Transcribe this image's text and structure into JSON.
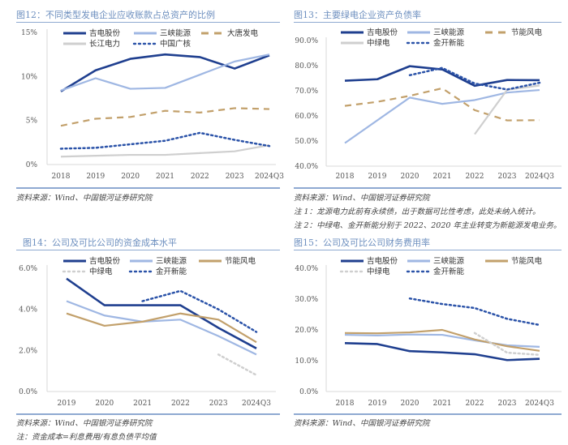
{
  "charts": [
    {
      "title": "图12：不同类型发电企业应收账款占总资产的比例",
      "notes": [
        "资料来源：Wind、中国银河证券研究院"
      ]
    },
    {
      "title": "图13：主要绿电企业资产负债率",
      "notes": [
        "资料来源：Wind、中国银河证券研究院",
        "注 1：龙源电力此前有永续债，出于数据可比性考虑，此处未纳入统计。",
        "注 2：中绿电、金开新能分别于 2022、2020 年主业转变为新能源发电业务。"
      ]
    },
    {
      "title": "图14：公司及可比公司的资金成本水平",
      "notes": [
        "资料来源：Wind、中国银河证券研究院",
        "注：资金成本=利息费用/有息负债平均值"
      ]
    },
    {
      "title": "图15：公司及可比公司财务费用率",
      "notes": [
        "资料来源：Wind、中国银河证券研究院"
      ]
    }
  ],
  "chart_data": [
    {
      "type": "line",
      "title": "图12：不同类型发电企业应收账款占总资产的比例",
      "categories": [
        "2018",
        "2019",
        "2020",
        "2021",
        "2022",
        "2023",
        "2024Q3"
      ],
      "ylim": [
        0,
        15
      ],
      "yticks": [
        "0%",
        "5%",
        "10%",
        "15%"
      ],
      "ytick_values": [
        0,
        5,
        10,
        15
      ],
      "legend": "top",
      "series": [
        {
          "name": "吉电股份",
          "style": "solid",
          "color": "#1f3f8f",
          "values": [
            8.3,
            10.7,
            12.0,
            12.5,
            12.2,
            10.9,
            12.4
          ]
        },
        {
          "name": "三峡能源",
          "style": "solid",
          "color": "#9fb7e3",
          "values": [
            8.4,
            9.8,
            8.6,
            8.7,
            10.2,
            11.7,
            12.5
          ]
        },
        {
          "name": "大唐发电",
          "style": "dashed",
          "color": "#c2a06b",
          "values": [
            4.4,
            5.2,
            5.4,
            6.1,
            5.9,
            6.4,
            6.3
          ]
        },
        {
          "name": "长江电力",
          "style": "solid",
          "color": "#cfcfcf",
          "values": [
            0.9,
            1.0,
            1.1,
            1.1,
            1.3,
            1.5,
            2.2
          ]
        },
        {
          "name": "中国广核",
          "style": "dotted",
          "color": "#2a52a8",
          "values": [
            1.8,
            1.9,
            2.3,
            2.7,
            3.6,
            2.8,
            2.1
          ]
        }
      ]
    },
    {
      "type": "line",
      "title": "图13：主要绿电企业资产负债率",
      "categories": [
        "2018",
        "2019",
        "2020",
        "2021",
        "2022",
        "2023",
        "2024Q3"
      ],
      "ylim": [
        40,
        90
      ],
      "yticks": [
        "40.0%",
        "50.0%",
        "60.0%",
        "70.0%",
        "80.0%",
        "90.0%"
      ],
      "ytick_values": [
        40,
        50,
        60,
        70,
        80,
        90
      ],
      "legend": "top",
      "series": [
        {
          "name": "吉电股份",
          "style": "solid",
          "color": "#1f3f8f",
          "values": [
            74.0,
            74.6,
            79.8,
            78.5,
            72.0,
            74.3,
            74.2
          ]
        },
        {
          "name": "三峡能源",
          "style": "solid",
          "color": "#9fb7e3",
          "values": [
            49.2,
            null,
            67.3,
            64.8,
            66.3,
            69.3,
            70.3
          ]
        },
        {
          "name": "节能风电",
          "style": "dashed",
          "color": "#c2a06b",
          "values": [
            64.0,
            65.6,
            68.0,
            71.0,
            62.3,
            58.2,
            58.3
          ]
        },
        {
          "name": "中绿电",
          "style": "solid",
          "color": "#cfcfcf",
          "values": [
            null,
            null,
            null,
            null,
            52.7,
            70.4,
            72.1
          ]
        },
        {
          "name": "金开新能",
          "style": "dotted",
          "color": "#2a52a8",
          "values": [
            null,
            null,
            76.2,
            79.1,
            72.9,
            70.5,
            73.2
          ]
        }
      ]
    },
    {
      "type": "line",
      "title": "图14：公司及可比公司的资金成本水平",
      "categories": [
        "2019",
        "2020",
        "2021",
        "2022",
        "2023",
        "2024Q3"
      ],
      "ylim": [
        0,
        6
      ],
      "yticks": [
        "0.0%",
        "2.0%",
        "4.0%",
        "6.0%"
      ],
      "ytick_values": [
        0,
        2,
        4,
        6
      ],
      "legend": "top",
      "series": [
        {
          "name": "吉电股份",
          "style": "solid",
          "color": "#1f3f8f",
          "values": [
            5.5,
            4.2,
            4.2,
            4.2,
            3.1,
            2.1
          ]
        },
        {
          "name": "三峡能源",
          "style": "solid",
          "color": "#9fb7e3",
          "values": [
            4.4,
            3.7,
            3.4,
            3.5,
            2.7,
            1.8
          ]
        },
        {
          "name": "节能风电",
          "style": "solid",
          "color": "#c2a06b",
          "values": [
            3.8,
            3.2,
            3.4,
            3.8,
            3.5,
            2.4
          ]
        },
        {
          "name": "中绿电",
          "style": "dotted",
          "color": "#cfcfcf",
          "values": [
            null,
            null,
            null,
            null,
            1.8,
            0.8
          ]
        },
        {
          "name": "金开新能",
          "style": "dotted",
          "color": "#2a52a8",
          "values": [
            null,
            null,
            4.4,
            4.9,
            4.0,
            2.9
          ]
        }
      ]
    },
    {
      "type": "line",
      "title": "图15：公司及可比公司财务费用率",
      "categories": [
        "2018",
        "2019",
        "2020",
        "2021",
        "2022",
        "2023",
        "2024Q3"
      ],
      "ylim": [
        0,
        40
      ],
      "yticks": [
        "0.0%",
        "10.0%",
        "20.0%",
        "30.0%",
        "40.0%"
      ],
      "ytick_values": [
        0,
        10,
        20,
        30,
        40
      ],
      "legend": "top",
      "series": [
        {
          "name": "吉电股份",
          "style": "solid",
          "color": "#1f3f8f",
          "values": [
            15.7,
            15.4,
            13.1,
            12.7,
            12.1,
            10.2,
            10.6
          ]
        },
        {
          "name": "三峡能源",
          "style": "solid",
          "color": "#9fb7e3",
          "values": [
            18.4,
            18.2,
            18.5,
            18.4,
            16.6,
            15.0,
            14.5
          ]
        },
        {
          "name": "节能风电",
          "style": "solid",
          "color": "#c2a06b",
          "values": [
            19.0,
            18.9,
            19.2,
            20.0,
            16.9,
            14.7,
            13.2
          ]
        },
        {
          "name": "中绿电",
          "style": "dotted",
          "color": "#cfcfcf",
          "values": [
            null,
            null,
            null,
            null,
            19.0,
            12.6,
            11.9
          ]
        },
        {
          "name": "金开新能",
          "style": "dotted",
          "color": "#2a52a8",
          "values": [
            null,
            null,
            30.2,
            28.4,
            27.1,
            23.6,
            21.6
          ]
        }
      ]
    }
  ]
}
